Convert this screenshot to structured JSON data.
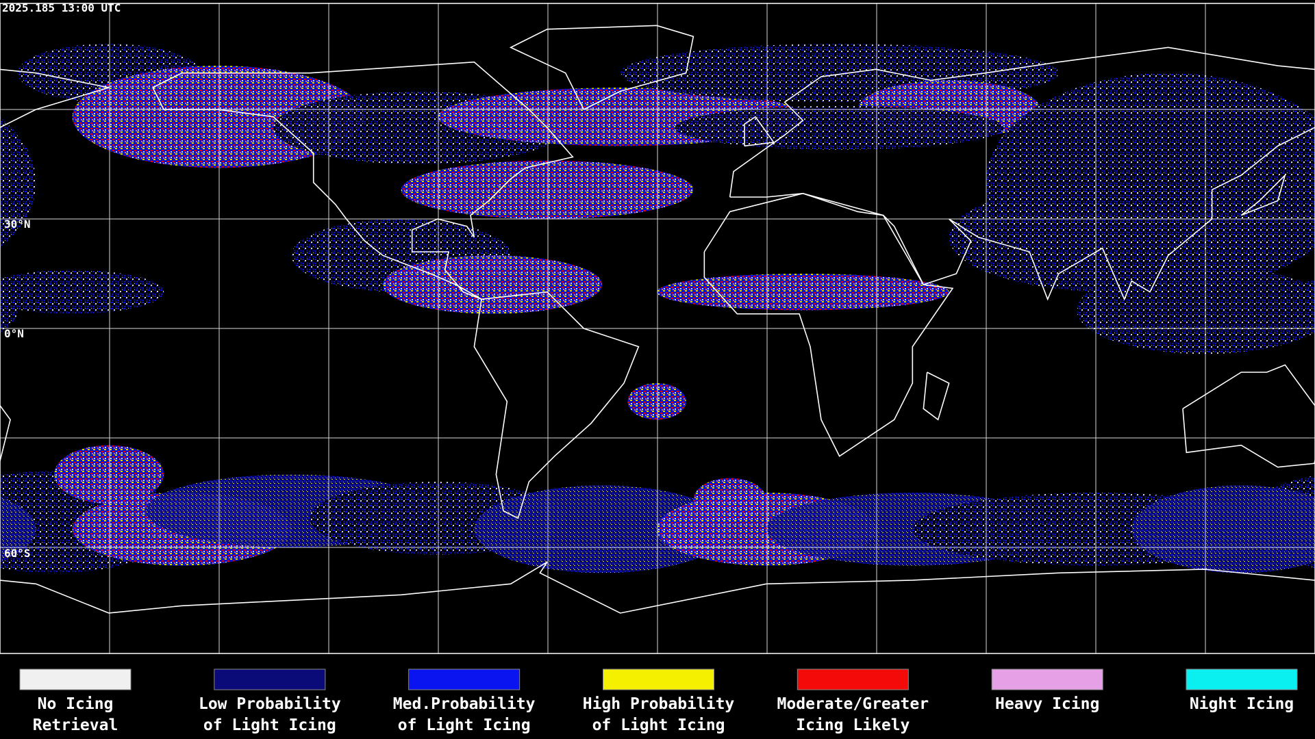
{
  "header": {
    "timestamp": "2025.185 13:00 UTC"
  },
  "map": {
    "latitude_labels": [
      "30°N",
      "0°N",
      "60°S"
    ]
  },
  "legend": [
    {
      "label_lines": [
        "No Icing",
        "Retrieval"
      ],
      "color": "#f0f0f0"
    },
    {
      "label_lines": [
        "Low Probability",
        "of Light Icing"
      ],
      "color": "#0a0a78"
    },
    {
      "label_lines": [
        "Med.Probability",
        "of Light Icing"
      ],
      "color": "#0a14f0"
    },
    {
      "label_lines": [
        "High Probability",
        "of Light Icing"
      ],
      "color": "#f5f000"
    },
    {
      "label_lines": [
        "Moderate/Greater",
        "Icing Likely"
      ],
      "color": "#f50a0a"
    },
    {
      "label_lines": [
        "Heavy Icing"
      ],
      "color": "#e6a0e6"
    },
    {
      "label_lines": [
        "Night Icing"
      ],
      "color": "#0af0f0"
    }
  ]
}
